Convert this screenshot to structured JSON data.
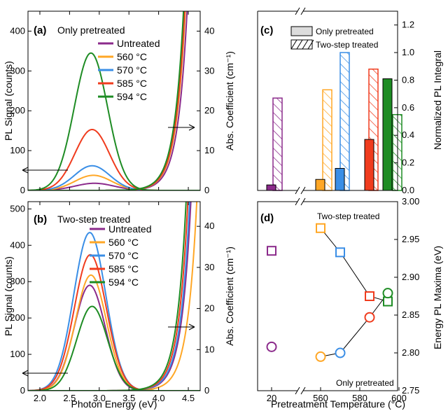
{
  "colors": {
    "Untreated": "#8B2A8B",
    "560": "#FFA726",
    "570": "#3A8EE6",
    "585": "#F03C1E",
    "594": "#1E8C24",
    "black": "#000000"
  },
  "chart_data": [
    {
      "panel": "(a)",
      "type": "line",
      "title": "Only pretreated",
      "xlabel": "",
      "ylabel": "PL Signal (counts)",
      "ylabel_right": "Abs. Coefficient (cm⁻¹)",
      "xlim": [
        1.8,
        4.7
      ],
      "ylim": [
        0,
        450
      ],
      "ylim_right": [
        0,
        45
      ],
      "xticks": [
        "2.0",
        "2.5",
        "3.0",
        "3.5",
        "4.0",
        "4.5"
      ],
      "yticks": [
        "0",
        "100",
        "200",
        "300",
        "400"
      ],
      "yticks_right": [
        "0",
        "10",
        "20",
        "30",
        "40"
      ],
      "legend": [
        "Untreated",
        "560 °C",
        "570 °C",
        "585 °C",
        "594 °C"
      ],
      "series": [
        {
          "name": "Untreated",
          "pl_peak": 18,
          "pl_center": 2.92,
          "pl_sigma": 0.33,
          "abs_edge": 4.46
        },
        {
          "name": "560 °C",
          "pl_peak": 38,
          "pl_center": 2.9,
          "pl_sigma": 0.31,
          "abs_edge": 4.43
        },
        {
          "name": "570 °C",
          "pl_peak": 62,
          "pl_center": 2.88,
          "pl_sigma": 0.3,
          "abs_edge": 4.42
        },
        {
          "name": "585 °C",
          "pl_peak": 153,
          "pl_center": 2.88,
          "pl_sigma": 0.29,
          "abs_edge": 4.42
        },
        {
          "name": "594 °C",
          "pl_peak": 345,
          "pl_center": 2.86,
          "pl_sigma": 0.28,
          "abs_edge": 4.4
        }
      ],
      "arrows": [
        "left",
        "right"
      ]
    },
    {
      "panel": "(b)",
      "type": "line",
      "title": "Two-step treated",
      "xlabel": "Photon Energy (eV)",
      "ylabel": "PL Signal (counts)",
      "ylabel_right": "Abs. Coefficient (cm⁻¹)",
      "xlim": [
        1.8,
        4.7
      ],
      "ylim": [
        0,
        520
      ],
      "ylim_right": [
        0,
        46
      ],
      "xticks": [
        "2.0",
        "2.5",
        "3.0",
        "3.5",
        "4.0",
        "4.5"
      ],
      "yticks": [
        "0",
        "100",
        "200",
        "300",
        "400",
        "500"
      ],
      "yticks_right": [
        "0",
        "10",
        "20",
        "30",
        "40"
      ],
      "legend": [
        "Untreated",
        "560 °C",
        "570 °C",
        "585 °C",
        "594 °C"
      ],
      "series": [
        {
          "name": "Untreated",
          "pl_peak": 290,
          "pl_center": 2.84,
          "pl_sigma": 0.26,
          "abs_edge": 4.52
        },
        {
          "name": "560 °C",
          "pl_peak": 318,
          "pl_center": 2.86,
          "pl_sigma": 0.26,
          "abs_edge": 4.62
        },
        {
          "name": "570 °C",
          "pl_peak": 435,
          "pl_center": 2.84,
          "pl_sigma": 0.27,
          "abs_edge": 4.5
        },
        {
          "name": "585 °C",
          "pl_peak": 374,
          "pl_center": 2.85,
          "pl_sigma": 0.27,
          "abs_edge": 4.47
        },
        {
          "name": "594 °C",
          "pl_peak": 232,
          "pl_center": 2.88,
          "pl_sigma": 0.26,
          "abs_edge": 4.44
        }
      ],
      "arrows": [
        "left",
        "right"
      ]
    },
    {
      "panel": "(c)",
      "type": "bar",
      "ylabel_right": "Normalized PL Integral",
      "ylim": [
        0,
        1.3
      ],
      "yticks": [
        "0.0",
        "0.2",
        "0.4",
        "0.6",
        "0.8",
        "1.0",
        "1.2"
      ],
      "legend": [
        "Only pretreated",
        "Two-step treated"
      ],
      "categories": [
        "20",
        "560",
        "570",
        "585",
        "594"
      ],
      "series": [
        {
          "name": "Only pretreated",
          "values": [
            0.04,
            0.08,
            0.16,
            0.37,
            0.81
          ]
        },
        {
          "name": "Two-step treated",
          "values": [
            0.67,
            0.73,
            1.0,
            0.88,
            0.55
          ]
        }
      ]
    },
    {
      "panel": "(d)",
      "type": "scatter",
      "xlabel": "Pretreatment Temperature (°C)",
      "ylabel_right": "Energy PL Maxima (eV)",
      "xticks": [
        "20",
        "560",
        "580",
        "600"
      ],
      "ylim": [
        2.75,
        3.0
      ],
      "yticks": [
        "2.75",
        "2.80",
        "2.85",
        "2.90",
        "2.95",
        "3.00"
      ],
      "annotations": [
        "Two-step treated",
        "Only pretreated"
      ],
      "series": [
        {
          "name": "Two-step treated",
          "marker": "square",
          "x": [
            20,
            560,
            570,
            585,
            594
          ],
          "y": [
            2.935,
            2.965,
            2.933,
            2.875,
            2.868
          ]
        },
        {
          "name": "Only pretreated",
          "marker": "circle",
          "x": [
            20,
            560,
            570,
            585,
            594
          ],
          "y": [
            2.808,
            2.795,
            2.8,
            2.847,
            2.879
          ]
        }
      ]
    }
  ]
}
